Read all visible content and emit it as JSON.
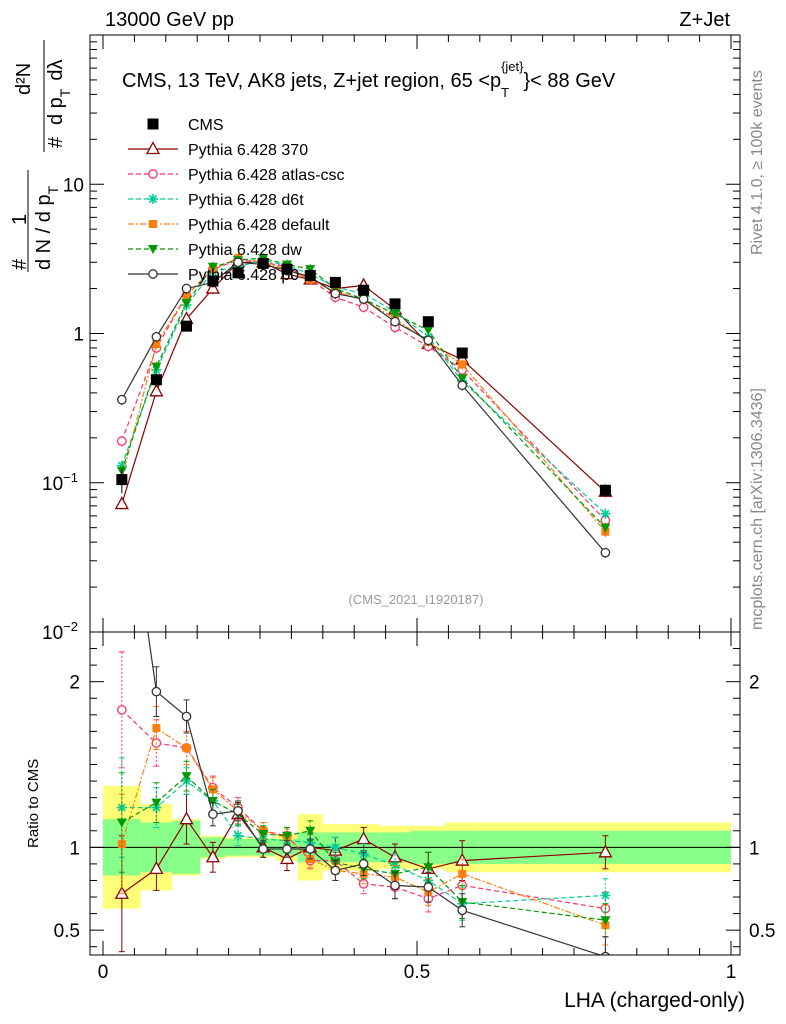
{
  "header": {
    "energy_label": "13000 GeV pp",
    "process_label": "Z+Jet"
  },
  "side_labels": {
    "rivet": "Rivet 4.1.0, ≥ 100k events",
    "mcplots": "mcplots.cern.ch [arXiv:1306.3436]"
  },
  "chart_data": {
    "type": "line",
    "title_main": "CMS, 13 TeV, AK8 jets, Z+jet region, 65 <p",
    "title_sub": "T",
    "title_sup": "{jet}",
    "title_end": "}< 88 GeV",
    "analysis_id": "(CMS_2021_I1920187)",
    "xlabel": "LHA (charged-only)",
    "ylabel_top": "#1/#dN/dp_T # d²N/dp_T dλ",
    "ylabel_parts": [
      "#",
      "1",
      "d N / d p",
      "T",
      "#",
      "d p",
      "T",
      "dλ",
      "d²N"
    ],
    "ylabel_ratio": "Ratio to CMS",
    "xlim": [
      0,
      1
    ],
    "ylim_main": [
      0.01,
      100
    ],
    "ylim_ratio": [
      0.35,
      2.3
    ],
    "x_ticks": [
      {
        "v": 0,
        "label": "0"
      },
      {
        "v": 0.5,
        "label": "0.5"
      },
      {
        "v": 1,
        "label": "1"
      }
    ],
    "y_ticks_main": [
      {
        "v": 0.01,
        "base": "10",
        "exp": "−2"
      },
      {
        "v": 0.1,
        "base": "10",
        "exp": "−1"
      },
      {
        "v": 1,
        "base": "1",
        "exp": ""
      },
      {
        "v": 10,
        "base": "10",
        "exp": ""
      }
    ],
    "y_ticks_ratio": [
      {
        "v": 0.5,
        "label": "0.5"
      },
      {
        "v": 1,
        "label": "1"
      },
      {
        "v": 2,
        "label": "2"
      }
    ],
    "bins": [
      [
        0,
        0.06
      ],
      [
        0.06,
        0.11
      ],
      [
        0.11,
        0.155
      ],
      [
        0.155,
        0.195
      ],
      [
        0.195,
        0.235
      ],
      [
        0.235,
        0.275
      ],
      [
        0.275,
        0.31
      ],
      [
        0.31,
        0.35
      ],
      [
        0.35,
        0.39
      ],
      [
        0.39,
        0.44
      ],
      [
        0.44,
        0.49
      ],
      [
        0.49,
        0.545
      ],
      [
        0.545,
        0.6
      ],
      [
        0.6,
        1.0
      ]
    ],
    "x": [
      0.03,
      0.085,
      0.133,
      0.175,
      0.215,
      0.255,
      0.293,
      0.33,
      0.37,
      0.415,
      0.465,
      0.518,
      0.572,
      0.8
    ],
    "data": {
      "name": "CMS",
      "values": [
        0.105,
        0.49,
        1.12,
        2.25,
        2.55,
        2.95,
        2.7,
        2.45,
        2.2,
        1.95,
        1.58,
        1.2,
        0.74,
        0.089
      ],
      "errors": [
        0.02,
        0.05,
        0.07,
        0.1,
        0.1,
        0.1,
        0.1,
        0.1,
        0.1,
        0.1,
        0.08,
        0.06,
        0.04,
        0.008
      ]
    },
    "ratio_band_inner": [
      0.17,
      0.15,
      0.16,
      0.06,
      0.05,
      0.05,
      0.05,
      0.09,
      0.09,
      0.09,
      0.09,
      0.1,
      0.1,
      0.1
    ],
    "ratio_band_outer": [
      0.37,
      0.26,
      0.17,
      0.07,
      0.06,
      0.06,
      0.08,
      0.2,
      0.14,
      0.14,
      0.13,
      0.13,
      0.15,
      0.15
    ],
    "series": [
      {
        "name": "Pythia 6.428 370",
        "color": "#8b0000",
        "dash": "",
        "marker": "triangle-open",
        "values": [
          0.072,
          0.41,
          1.25,
          2.0,
          3.0,
          3.0,
          2.5,
          2.3,
          2.0,
          2.1,
          1.45,
          0.85,
          0.67,
          0.087
        ],
        "ratio": [
          0.72,
          0.87,
          1.17,
          0.94,
          1.2,
          1.0,
          0.93,
          1.0,
          0.98,
          1.05,
          0.94,
          0.87,
          0.92,
          0.97
        ],
        "ratio_err": [
          0.35,
          0.13,
          0.15,
          0.09,
          0.07,
          0.06,
          0.07,
          0.08,
          0.08,
          0.07,
          0.08,
          0.1,
          0.12,
          0.1
        ]
      },
      {
        "name": "Pythia 6.428 atlas-csc",
        "color": "#ff3366",
        "dash": "5,3",
        "marker": "circle-open",
        "values": [
          0.19,
          0.8,
          1.8,
          2.7,
          3.1,
          3.0,
          2.8,
          2.3,
          1.75,
          1.5,
          1.1,
          0.82,
          0.57,
          0.056
        ],
        "ratio": [
          1.83,
          1.63,
          1.6,
          1.36,
          1.24,
          1.1,
          1.07,
          0.92,
          0.92,
          0.78,
          0.76,
          0.69,
          0.77,
          0.63
        ],
        "ratio_err": [
          0.35,
          0.14,
          0.1,
          0.07,
          0.06,
          0.05,
          0.05,
          0.05,
          0.06,
          0.06,
          0.07,
          0.08,
          0.09,
          0.1
        ]
      },
      {
        "name": "Pythia 6.428 d6t",
        "color": "#00cc99",
        "dash": "5,3",
        "marker": "star",
        "values": [
          0.13,
          0.57,
          1.55,
          2.6,
          2.8,
          3.1,
          2.85,
          2.5,
          2.05,
          1.85,
          1.4,
          0.95,
          0.48,
          0.062
        ],
        "ratio": [
          1.24,
          1.24,
          1.4,
          1.28,
          1.07,
          1.05,
          1.04,
          1.03,
          1.0,
          0.96,
          0.89,
          0.8,
          0.66,
          0.71
        ],
        "ratio_err": [
          0.3,
          0.12,
          0.08,
          0.07,
          0.06,
          0.05,
          0.05,
          0.06,
          0.06,
          0.06,
          0.07,
          0.09,
          0.1,
          0.1
        ]
      },
      {
        "name": "Pythia 6.428 default",
        "color": "#ff7f0e",
        "dash": "6,2,2,2",
        "marker": "square",
        "values": [
          0.107,
          0.85,
          1.8,
          2.7,
          3.2,
          3.0,
          2.7,
          2.3,
          1.9,
          1.7,
          1.25,
          0.88,
          0.62,
          0.047
        ],
        "ratio": [
          1.02,
          1.72,
          1.6,
          1.35,
          1.22,
          1.1,
          1.06,
          0.93,
          0.86,
          0.84,
          0.82,
          0.73,
          0.84,
          0.53
        ],
        "ratio_err": [
          0.3,
          0.13,
          0.1,
          0.07,
          0.06,
          0.05,
          0.05,
          0.05,
          0.06,
          0.06,
          0.07,
          0.08,
          0.09,
          0.12
        ]
      },
      {
        "name": "Pythia 6.428 dw",
        "color": "#009900",
        "dash": "5,3",
        "marker": "triangle-down",
        "values": [
          0.12,
          0.6,
          1.6,
          2.8,
          3.1,
          3.2,
          2.9,
          2.7,
          2.0,
          1.7,
          1.35,
          1.05,
          0.5,
          0.05
        ],
        "ratio": [
          1.15,
          1.27,
          1.43,
          1.28,
          1.2,
          1.08,
          1.07,
          1.1,
          0.91,
          0.87,
          0.84,
          0.88,
          0.67,
          0.56
        ],
        "ratio_err": [
          0.3,
          0.12,
          0.09,
          0.07,
          0.06,
          0.05,
          0.05,
          0.06,
          0.06,
          0.06,
          0.07,
          0.09,
          0.1,
          0.1
        ]
      },
      {
        "name": "Pythia 6.428 p0",
        "color": "#333333",
        "dash": "",
        "marker": "circle-open",
        "values": [
          0.36,
          0.95,
          2.0,
          2.2,
          3.0,
          2.9,
          2.65,
          2.4,
          1.85,
          1.7,
          1.2,
          0.9,
          0.45,
          0.034
        ],
        "ratio": [
          3.4,
          1.94,
          1.79,
          1.2,
          1.22,
          0.99,
          0.99,
          0.99,
          0.86,
          0.9,
          0.77,
          0.76,
          0.62,
          0.34
        ],
        "ratio_err": [
          0.4,
          0.15,
          0.1,
          0.07,
          0.06,
          0.05,
          0.05,
          0.06,
          0.06,
          0.07,
          0.08,
          0.09,
          0.1,
          0.12
        ]
      }
    ]
  }
}
